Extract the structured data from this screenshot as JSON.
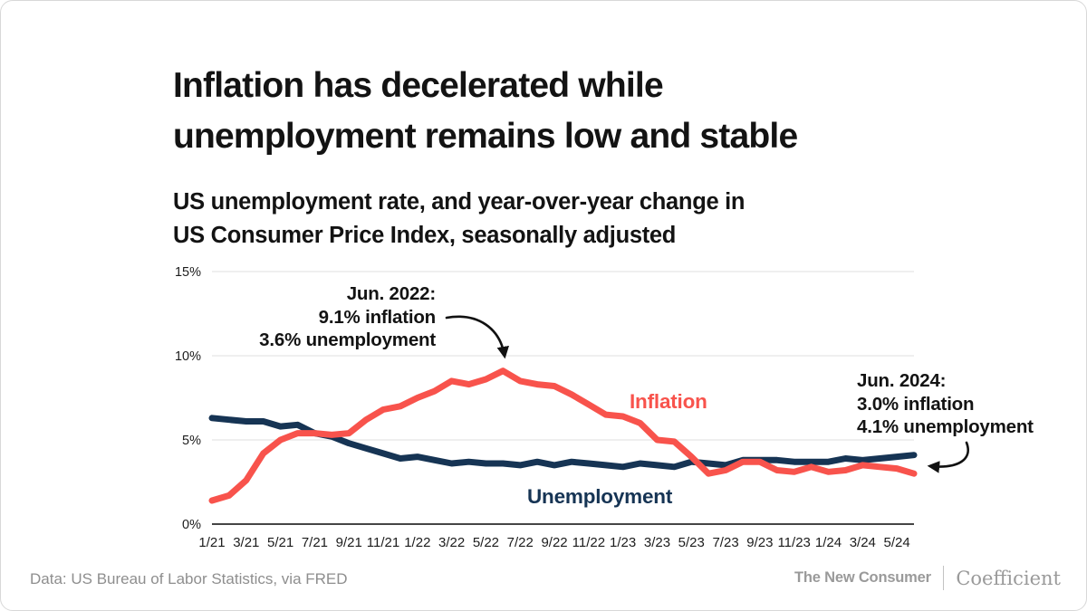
{
  "header": {
    "title_line1": "Inflation has decelerated while",
    "title_line2": "unemployment remains low and stable",
    "subtitle_line1": "US unemployment rate, and year-over-year change in",
    "subtitle_line2": "US Consumer Price Index, seasonally adjusted"
  },
  "chart_data": {
    "type": "line",
    "title": "US unemployment rate, and year-over-year change in US Consumer Price Index, seasonally adjusted",
    "months": [
      "1/21",
      "2/21",
      "3/21",
      "4/21",
      "5/21",
      "6/21",
      "7/21",
      "8/21",
      "9/21",
      "10/21",
      "11/21",
      "12/21",
      "1/22",
      "2/22",
      "3/22",
      "4/22",
      "5/22",
      "6/22",
      "7/22",
      "8/22",
      "9/22",
      "10/22",
      "11/22",
      "12/22",
      "1/23",
      "2/23",
      "3/23",
      "4/23",
      "5/23",
      "6/23",
      "7/23",
      "8/23",
      "9/23",
      "10/23",
      "11/23",
      "12/23",
      "1/24",
      "2/24",
      "3/24",
      "4/24",
      "5/24",
      "6/24"
    ],
    "x_tick_every": 2,
    "x_tick_labels": [
      "1/21",
      "3/21",
      "5/21",
      "7/21",
      "9/21",
      "11/21",
      "1/22",
      "3/22",
      "5/22",
      "7/22",
      "9/22",
      "11/22",
      "1/23",
      "3/23",
      "5/23",
      "7/23",
      "9/23",
      "11/23",
      "1/24",
      "3/24",
      "5/24"
    ],
    "ylim": [
      0,
      15
    ],
    "yticks": [
      {
        "value": 0,
        "label": "0%"
      },
      {
        "value": 5,
        "label": "5%"
      },
      {
        "value": 10,
        "label": "10%"
      },
      {
        "value": 15,
        "label": "15%"
      }
    ],
    "series": [
      {
        "name": "Unemployment",
        "color": "#163454",
        "values": [
          6.3,
          6.2,
          6.1,
          6.1,
          5.8,
          5.9,
          5.4,
          5.2,
          4.8,
          4.5,
          4.2,
          3.9,
          4.0,
          3.8,
          3.6,
          3.7,
          3.6,
          3.6,
          3.5,
          3.7,
          3.5,
          3.7,
          3.6,
          3.5,
          3.4,
          3.6,
          3.5,
          3.4,
          3.7,
          3.6,
          3.5,
          3.8,
          3.8,
          3.8,
          3.7,
          3.7,
          3.7,
          3.9,
          3.8,
          3.9,
          4.0,
          4.1
        ]
      },
      {
        "name": "Inflation",
        "color": "#F8534C",
        "values": [
          1.4,
          1.7,
          2.6,
          4.2,
          5.0,
          5.4,
          5.4,
          5.3,
          5.4,
          6.2,
          6.8,
          7.0,
          7.5,
          7.9,
          8.5,
          8.3,
          8.6,
          9.1,
          8.5,
          8.3,
          8.2,
          7.7,
          7.1,
          6.5,
          6.4,
          6.0,
          5.0,
          4.9,
          4.0,
          3.0,
          3.2,
          3.7,
          3.7,
          3.2,
          3.1,
          3.4,
          3.1,
          3.2,
          3.5,
          3.4,
          3.3,
          3.0
        ]
      }
    ],
    "grid": true,
    "legend_position": "inline-labels",
    "annotations": [
      {
        "lines": [
          "Jun. 2022:",
          "9.1% inflation",
          "3.6% unemployment"
        ],
        "align": "right",
        "points_to": "6/22 inflation peak"
      },
      {
        "lines": [
          "Jun. 2024:",
          "3.0% inflation",
          "4.1% unemployment"
        ],
        "align": "left",
        "points_to": "6/24 line ends"
      }
    ]
  },
  "colors": {
    "inflation": "#F8534C",
    "unemployment": "#163454",
    "grid": "#eaeaea",
    "axis": "#454545",
    "text": "#131313",
    "muted": "#8e8e8e",
    "card_border": "#d8d8d8"
  },
  "footer": {
    "source": "Data: US Bureau of Labor Statistics, via FRED",
    "brand_left": "The New Consumer",
    "brand_right": "Coefficient"
  }
}
